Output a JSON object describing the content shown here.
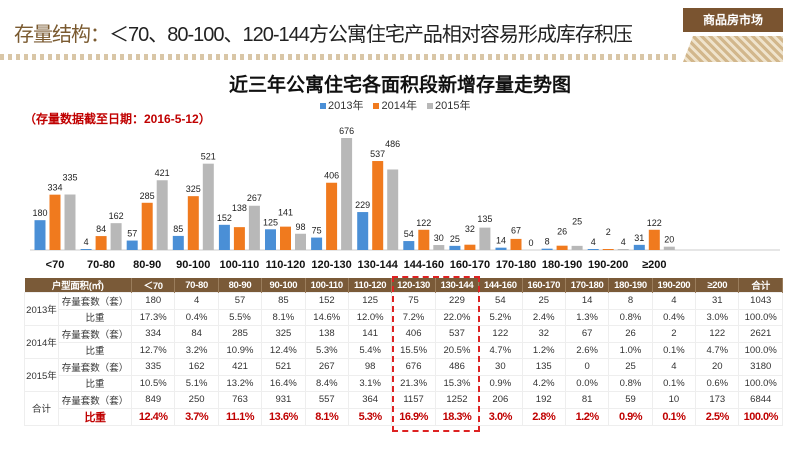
{
  "header": {
    "title_prefix": "存量结构：",
    "title_text": "＜70、80-100、120-144方公寓住宅产品相对容易形成库存积压",
    "badge": "商品房市场"
  },
  "note": "（存量数据截至日期：2016-5-12）",
  "chart_data": {
    "type": "bar",
    "title": "近三年公寓住宅各面积段新增存量走势图",
    "categories": [
      "<70",
      "70-80",
      "80-90",
      "90-100",
      "100-110",
      "110-120",
      "120-130",
      "130-144",
      "144-160",
      "160-170",
      "170-180",
      "180-190",
      "190-200",
      "≥200"
    ],
    "series": [
      {
        "name": "2013年",
        "color": "#4a8fd6",
        "values": [
          180,
          4,
          57,
          85,
          152,
          125,
          75,
          229,
          54,
          25,
          14,
          8,
          4,
          31
        ]
      },
      {
        "name": "2014年",
        "color": "#f07a1e",
        "values": [
          334,
          84,
          285,
          325,
          138,
          141,
          406,
          537,
          122,
          32,
          67,
          26,
          2,
          122
        ]
      },
      {
        "name": "2015年",
        "color": "#b8b8b8",
        "values": [
          335,
          162,
          421,
          521,
          267,
          98,
          676,
          486,
          30,
          135,
          0,
          25,
          4,
          20
        ]
      }
    ],
    "legend": "top-center"
  },
  "table": {
    "headers": [
      "户型面积(㎡)",
      "＜70",
      "70-80",
      "80-90",
      "90-100",
      "100-110",
      "110-120",
      "120-130",
      "130-144",
      "144-160",
      "160-170",
      "170-180",
      "180-190",
      "190-200",
      "≥200",
      "合计"
    ],
    "groups": [
      {
        "label": "2013年",
        "rows": [
          {
            "label": "存量套数（套）",
            "cells": [
              "180",
              "4",
              "57",
              "85",
              "152",
              "125",
              "75",
              "229",
              "54",
              "25",
              "14",
              "8",
              "4",
              "31",
              "1043"
            ]
          },
          {
            "label": "比重",
            "cells": [
              "17.3%",
              "0.4%",
              "5.5%",
              "8.1%",
              "14.6%",
              "12.0%",
              "7.2%",
              "22.0%",
              "5.2%",
              "2.4%",
              "1.3%",
              "0.8%",
              "0.4%",
              "3.0%",
              "100.0%"
            ]
          }
        ]
      },
      {
        "label": "2014年",
        "rows": [
          {
            "label": "存量套数（套）",
            "cells": [
              "334",
              "84",
              "285",
              "325",
              "138",
              "141",
              "406",
              "537",
              "122",
              "32",
              "67",
              "26",
              "2",
              "122",
              "2621"
            ]
          },
          {
            "label": "比重",
            "cells": [
              "12.7%",
              "3.2%",
              "10.9%",
              "12.4%",
              "5.3%",
              "5.4%",
              "15.5%",
              "20.5%",
              "4.7%",
              "1.2%",
              "2.6%",
              "1.0%",
              "0.1%",
              "4.7%",
              "100.0%"
            ]
          }
        ]
      },
      {
        "label": "2015年",
        "rows": [
          {
            "label": "存量套数（套）",
            "cells": [
              "335",
              "162",
              "421",
              "521",
              "267",
              "98",
              "676",
              "486",
              "30",
              "135",
              "0",
              "25",
              "4",
              "20",
              "3180"
            ]
          },
          {
            "label": "比重",
            "cells": [
              "10.5%",
              "5.1%",
              "13.2%",
              "16.4%",
              "8.4%",
              "3.1%",
              "21.3%",
              "15.3%",
              "0.9%",
              "4.2%",
              "0.0%",
              "0.8%",
              "0.1%",
              "0.6%",
              "100.0%"
            ]
          }
        ]
      },
      {
        "label": "合计",
        "rows": [
          {
            "label": "存量套数（套）",
            "cells": [
              "849",
              "250",
              "763",
              "931",
              "557",
              "364",
              "1157",
              "1252",
              "206",
              "192",
              "81",
              "59",
              "10",
              "173",
              "6844"
            ]
          },
          {
            "label": "比重",
            "cells": [
              "12.4%",
              "3.7%",
              "11.1%",
              "13.6%",
              "8.1%",
              "5.3%",
              "16.9%",
              "18.3%",
              "3.0%",
              "2.8%",
              "1.2%",
              "0.9%",
              "0.1%",
              "2.5%",
              "100.0%"
            ]
          }
        ]
      }
    ]
  }
}
